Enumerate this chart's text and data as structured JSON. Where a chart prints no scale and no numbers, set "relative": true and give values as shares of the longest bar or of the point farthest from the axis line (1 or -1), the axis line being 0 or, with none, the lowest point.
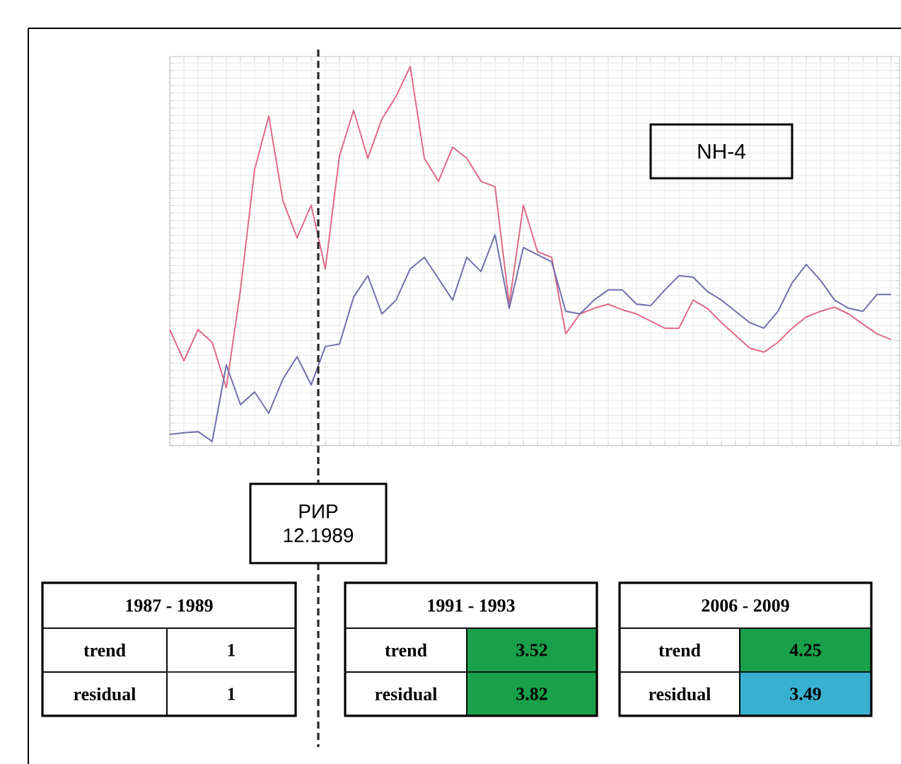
{
  "chart_data": {
    "type": "line",
    "relative": true,
    "grid": true,
    "marker": "none",
    "line_style": "solid",
    "categories": [
      null,
      null,
      null,
      null,
      null,
      null,
      null,
      null,
      null,
      null,
      null,
      null,
      null,
      null,
      null,
      null,
      null,
      null,
      null,
      null,
      null,
      null,
      null,
      null,
      null,
      null,
      null,
      null,
      null,
      null,
      null,
      null,
      null,
      null,
      null,
      null,
      null,
      null,
      null,
      null,
      null,
      null,
      null,
      null,
      null,
      null,
      null,
      null,
      null,
      null,
      null,
      null
    ],
    "series": [
      {
        "color": "#e06a86",
        "values": [
          0.298,
          0.215,
          0.298,
          0.264,
          0.143,
          0.404,
          0.725,
          0.868,
          0.642,
          0.543,
          0.63,
          0.46,
          0.762,
          0.883,
          0.755,
          0.86,
          0.92,
          1.0,
          0.755,
          0.694,
          0.785,
          0.755,
          0.694,
          0.679,
          0.366,
          0.63,
          0.506,
          0.491,
          0.287,
          0.34,
          0.355,
          0.366,
          0.351,
          0.34,
          0.321,
          0.302,
          0.302,
          0.377,
          0.355,
          0.317,
          0.283,
          0.249,
          0.238,
          0.264,
          0.302,
          0.332,
          0.347,
          0.358,
          0.34,
          0.313,
          0.287,
          0.272
        ]
      },
      {
        "color": "#6f6fae",
        "values": [
          0.019,
          0.023,
          0.026,
          0.0,
          0.204,
          0.098,
          0.132,
          0.075,
          0.166,
          0.226,
          0.151,
          0.253,
          0.26,
          0.385,
          0.442,
          0.34,
          0.377,
          0.46,
          0.491,
          0.434,
          0.377,
          0.491,
          0.453,
          0.551,
          0.355,
          0.517,
          0.498,
          0.479,
          0.347,
          0.34,
          0.377,
          0.404,
          0.404,
          0.366,
          0.362,
          0.404,
          0.442,
          0.438,
          0.4,
          0.377,
          0.347,
          0.317,
          0.302,
          0.347,
          0.423,
          0.472,
          0.43,
          0.377,
          0.355,
          0.347,
          0.392,
          0.392
        ]
      }
    ],
    "annotations": [
      "NH-4",
      "РИР 12.1989",
      "1987 - 1989",
      "trend",
      "1",
      "residual",
      "1",
      "1991 - 1993",
      "trend",
      "3.52",
      "residual",
      "3.82",
      "2006 - 2009",
      "trend",
      "4.25",
      "residual",
      "3.49"
    ]
  }
}
